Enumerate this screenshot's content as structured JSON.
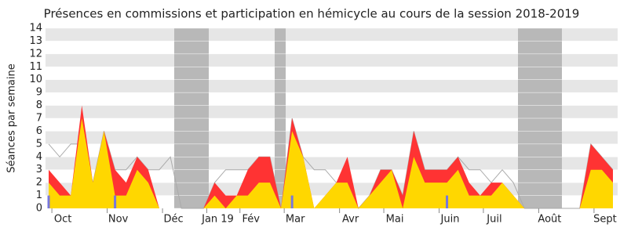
{
  "chart_data": {
    "type": "area",
    "title": "Présences en commissions et participation en hémicycle au cours de la session 2018-2019",
    "y_label": "Séances par semaine",
    "categories": [
      null,
      "Oct",
      null,
      null,
      null,
      null,
      "Nov",
      null,
      null,
      null,
      null,
      "Déc",
      null,
      null,
      null,
      "Jan 19",
      null,
      null,
      "Fév",
      null,
      null,
      null,
      "Mar",
      null,
      null,
      null,
      null,
      "Avr",
      null,
      null,
      null,
      "Mai",
      null,
      null,
      null,
      null,
      "Juin",
      null,
      null,
      null,
      "Juil",
      null,
      null,
      null,
      null,
      "Août",
      null,
      null,
      null,
      null,
      "Sept",
      null
    ],
    "series": [
      {
        "color": "#aaaaaa",
        "style": "line",
        "values": [
          5,
          4,
          5,
          5,
          2,
          6,
          3,
          3,
          4,
          3,
          3,
          4,
          0,
          0,
          0,
          2,
          3,
          3,
          3,
          4,
          4,
          0,
          7,
          4,
          3,
          3,
          2,
          2,
          0,
          1,
          3,
          3,
          1,
          6,
          3,
          3,
          3,
          4,
          3,
          3,
          2,
          3,
          2,
          0,
          0,
          0,
          0,
          0,
          0,
          5,
          4,
          3
        ]
      },
      {
        "color": "#ff3333",
        "style": "area",
        "values": [
          3,
          2,
          1,
          8,
          2,
          6,
          3,
          2,
          4,
          3,
          0,
          0,
          0,
          0,
          0,
          2,
          1,
          1,
          3,
          4,
          4,
          0,
          7,
          4,
          0,
          1,
          2,
          4,
          0,
          1,
          3,
          3,
          1,
          6,
          3,
          3,
          3,
          4,
          2,
          1,
          2,
          2,
          1,
          0,
          0,
          0,
          0,
          0,
          0,
          5,
          4,
          3
        ]
      },
      {
        "color": "#ffd700",
        "style": "area",
        "values": [
          2,
          1,
          1,
          7,
          2,
          6,
          1,
          1,
          3,
          2,
          0,
          0,
          0,
          0,
          0,
          1,
          0,
          1,
          1,
          2,
          2,
          0,
          6,
          4,
          0,
          1,
          2,
          2,
          0,
          1,
          2,
          3,
          0,
          4,
          2,
          2,
          2,
          3,
          1,
          1,
          1,
          2,
          1,
          0,
          0,
          0,
          0,
          0,
          0,
          3,
          3,
          2
        ]
      },
      {
        "color": "#7777dd",
        "style": "bar",
        "values": [
          1,
          0,
          0,
          0,
          0,
          0,
          1,
          0,
          0,
          0,
          0,
          0,
          0,
          0,
          0,
          0,
          0,
          0,
          0,
          0,
          0,
          0,
          1,
          0,
          0,
          0,
          0,
          0,
          0,
          0,
          0,
          0,
          0,
          0,
          0,
          0,
          1,
          0,
          0,
          0,
          0,
          0,
          0,
          0,
          0,
          0,
          0,
          0,
          0,
          0,
          0,
          0
        ]
      }
    ],
    "ylim": [
      0,
      14
    ],
    "yticks": [
      0,
      1,
      2,
      3,
      4,
      5,
      6,
      7,
      8,
      9,
      10,
      11,
      12,
      13,
      14
    ],
    "grid": true
  }
}
